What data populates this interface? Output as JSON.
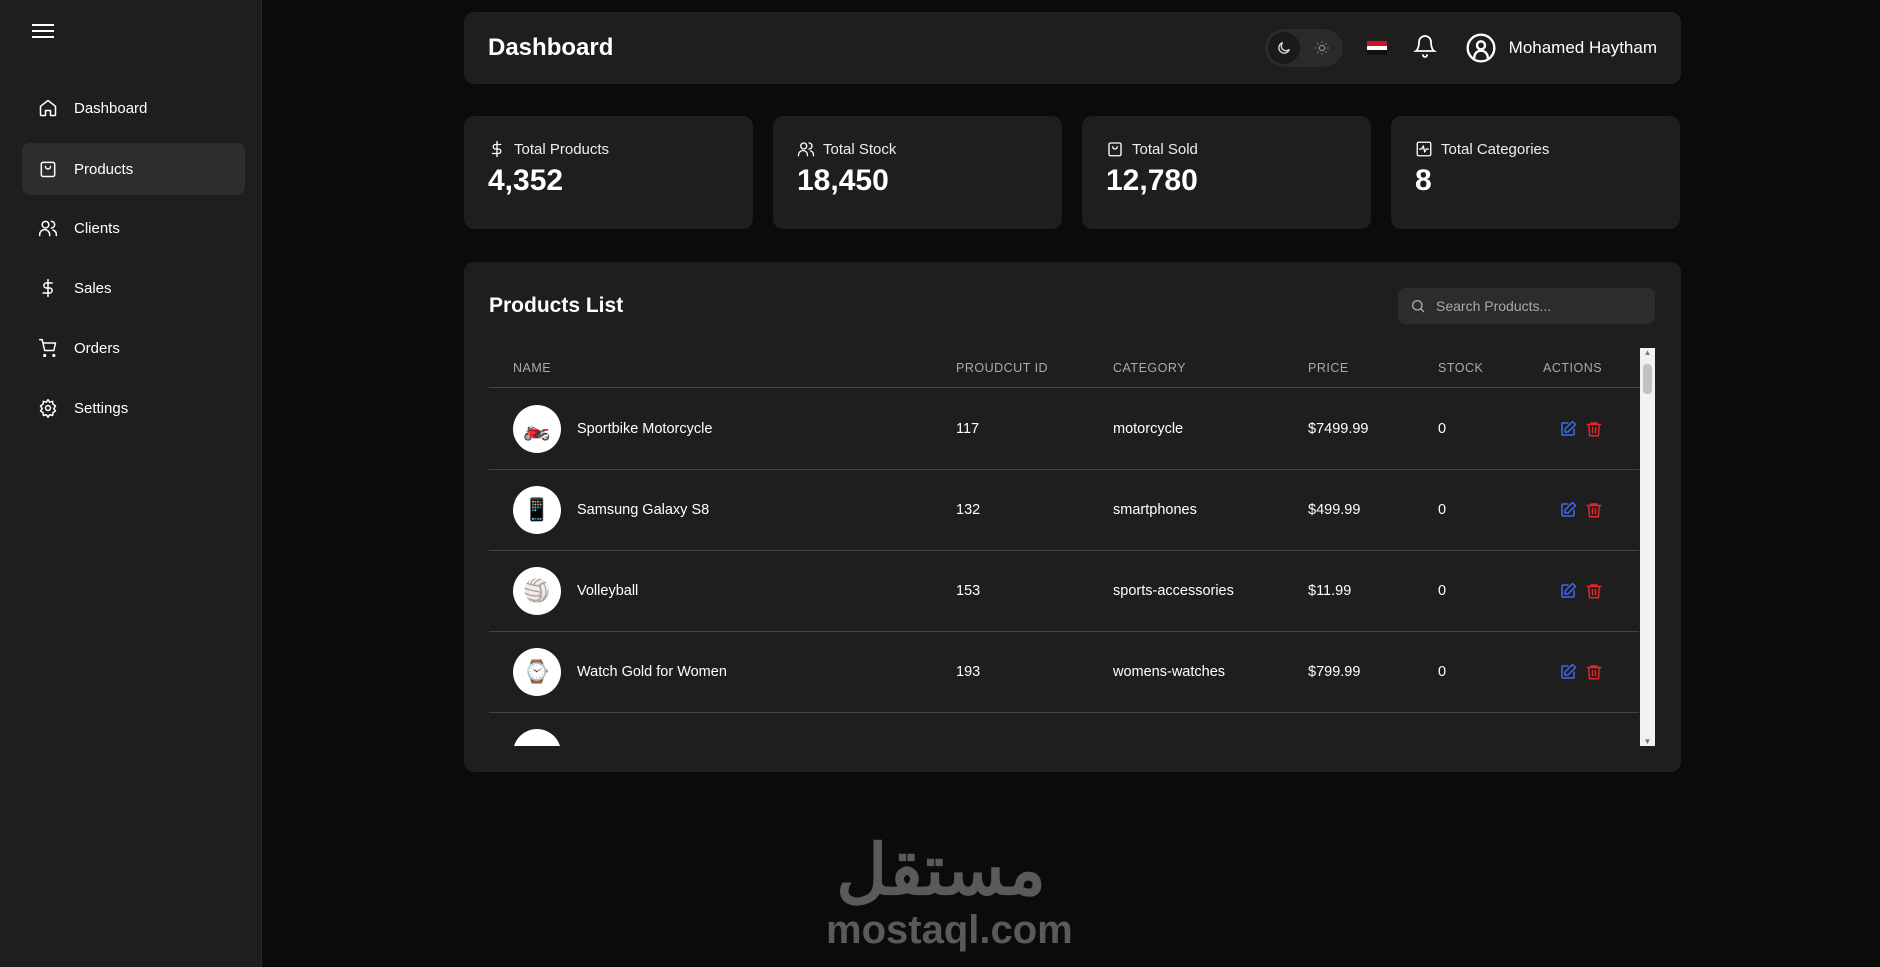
{
  "sidebar": {
    "items": [
      {
        "label": "Dashboard",
        "icon": "home-icon"
      },
      {
        "label": "Products",
        "icon": "shopping-bag-icon",
        "active": true
      },
      {
        "label": "Clients",
        "icon": "users-icon"
      },
      {
        "label": "Sales",
        "icon": "dollar-icon"
      },
      {
        "label": "Orders",
        "icon": "cart-icon"
      },
      {
        "label": "Settings",
        "icon": "gear-icon"
      }
    ]
  },
  "header": {
    "title": "Dashboard",
    "user_name": "Mohamed Haytham",
    "theme": "dark"
  },
  "stats": [
    {
      "label": "Total Products",
      "value": "4,352",
      "icon": "dollar-icon"
    },
    {
      "label": "Total Stock",
      "value": "18,450",
      "icon": "users-icon"
    },
    {
      "label": "Total Sold",
      "value": "12,780",
      "icon": "shopping-bag-icon"
    },
    {
      "label": "Total Categories",
      "value": "8",
      "icon": "activity-icon"
    }
  ],
  "products": {
    "title": "Products List",
    "search_placeholder": "Search Products...",
    "columns": [
      "NAME",
      "PROUDCUT ID",
      "CATEGORY",
      "PRICE",
      "STOCK",
      "ACTIONS"
    ],
    "rows": [
      {
        "name": "Sportbike Motorcycle",
        "id": "117",
        "category": "motorcycle",
        "price": "$7499.99",
        "stock": "0"
      },
      {
        "name": "Samsung Galaxy S8",
        "id": "132",
        "category": "smartphones",
        "price": "$499.99",
        "stock": "0"
      },
      {
        "name": "Volleyball",
        "id": "153",
        "category": "sports-accessories",
        "price": "$11.99",
        "stock": "0"
      },
      {
        "name": "Watch Gold for Women",
        "id": "193",
        "category": "womens-watches",
        "price": "$799.99",
        "stock": "0"
      }
    ]
  },
  "colors": {
    "edit": "#3b6cf0",
    "delete": "#e5262b",
    "card": "#1e1e1e",
    "background": "#0b0b0b"
  },
  "watermark": {
    "arabic": "مستقل",
    "latin": "mostaql.com"
  }
}
